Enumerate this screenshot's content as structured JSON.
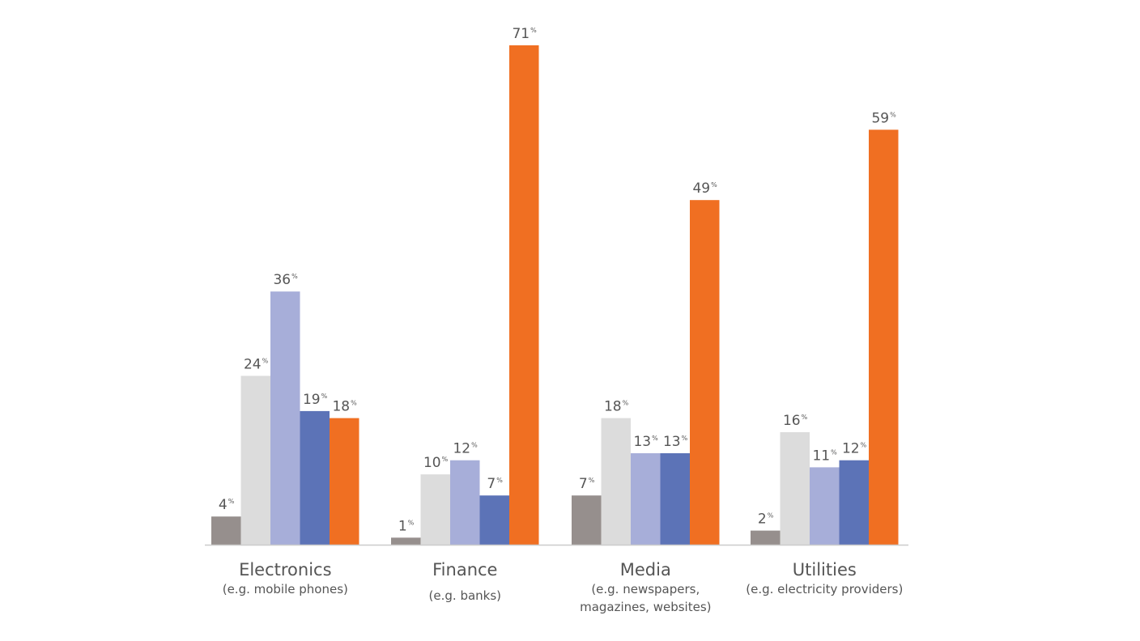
{
  "chart_data": {
    "type": "bar",
    "value_suffix": "%",
    "categories": [
      {
        "name": "Electronics",
        "subtitle": [
          "(e.g. mobile phones)"
        ]
      },
      {
        "name": "Finance",
        "subtitle": [
          "(e.g. banks)"
        ]
      },
      {
        "name": "Media",
        "subtitle": [
          "(e.g. newspapers,",
          "magazines, websites)"
        ]
      },
      {
        "name": "Utilities",
        "subtitle": [
          "(e.g. electricity providers)"
        ]
      }
    ],
    "series": [
      {
        "color": "#968f8d",
        "values": [
          4,
          1,
          7,
          2
        ]
      },
      {
        "color": "#dcdcdc",
        "values": [
          24,
          10,
          18,
          16
        ]
      },
      {
        "color": "#a7aed9",
        "values": [
          36,
          12,
          13,
          11
        ]
      },
      {
        "color": "#5c73b7",
        "values": [
          19,
          7,
          13,
          12
        ]
      },
      {
        "color": "#f06f22",
        "values": [
          18,
          71,
          49,
          59
        ]
      }
    ],
    "ylim": [
      0,
      71
    ],
    "grid": false,
    "legend": "none",
    "baseline_color": "#cccccc"
  }
}
